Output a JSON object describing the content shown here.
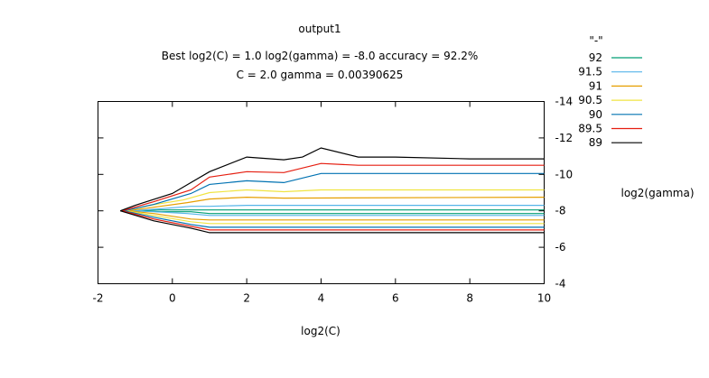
{
  "chart_data": {
    "type": "line",
    "subtype": "contour",
    "title": "output1",
    "subtitle_lines": [
      "Best log2(C) = 1.0  log2(gamma) = -8.0  accuracy = 92.2%",
      "C = 2.0  gamma = 0.00390625"
    ],
    "xlabel": "log2(C)",
    "ylabel": "log2(gamma)",
    "xlim": [
      -2,
      10
    ],
    "ylim": [
      -4,
      -14
    ],
    "y_axis_side": "right",
    "x_ticks": [
      -2,
      0,
      2,
      4,
      6,
      8,
      10
    ],
    "y_ticks": [
      -4,
      -6,
      -8,
      -10,
      -12,
      -14
    ],
    "grid": false,
    "legend_title": "\"-\"",
    "legend_position": "top-right outside",
    "series": [
      {
        "name": "92",
        "color": "#009e73",
        "lines": [
          [
            [
              -1.0,
              -8.0
            ],
            [
              -0.3,
              -8.05
            ],
            [
              0.5,
              -8.05
            ],
            [
              1.0,
              -8.05
            ],
            [
              10.0,
              -8.05
            ]
          ],
          [
            [
              -1.0,
              -8.0
            ],
            [
              -0.3,
              -7.95
            ],
            [
              0.5,
              -7.95
            ],
            [
              1.0,
              -7.85
            ],
            [
              10.0,
              -7.85
            ]
          ]
        ]
      },
      {
        "name": "91.5",
        "color": "#56b4e9",
        "lines": [
          [
            [
              -1.1,
              -8.0
            ],
            [
              -0.5,
              -7.95
            ],
            [
              0.4,
              -7.85
            ],
            [
              1.0,
              -7.75
            ],
            [
              10.0,
              -7.75
            ]
          ],
          [
            [
              -1.1,
              -8.0
            ],
            [
              -0.4,
              -8.1
            ],
            [
              0.5,
              -8.25
            ],
            [
              1.0,
              -8.25
            ],
            [
              2.0,
              -8.3
            ],
            [
              10.0,
              -8.3
            ]
          ]
        ]
      },
      {
        "name": "91",
        "color": "#e69f00",
        "lines": [
          [
            [
              -1.2,
              -8.0
            ],
            [
              -0.5,
              -7.85
            ],
            [
              0.5,
              -7.55
            ],
            [
              1.0,
              -7.5
            ],
            [
              10.0,
              -7.5
            ]
          ],
          [
            [
              -1.2,
              -8.0
            ],
            [
              -0.5,
              -8.2
            ],
            [
              0.4,
              -8.45
            ],
            [
              1.0,
              -8.65
            ],
            [
              2.0,
              -8.75
            ],
            [
              3.0,
              -8.7
            ],
            [
              10.0,
              -8.75
            ]
          ]
        ]
      },
      {
        "name": "90.5",
        "color": "#f0e442",
        "lines": [
          [
            [
              -1.25,
              -8.0
            ],
            [
              -0.5,
              -7.75
            ],
            [
              0.5,
              -7.4
            ],
            [
              1.0,
              -7.3
            ],
            [
              10.0,
              -7.3
            ]
          ],
          [
            [
              -1.25,
              -8.0
            ],
            [
              -0.6,
              -8.3
            ],
            [
              0.3,
              -8.6
            ],
            [
              1.0,
              -9.0
            ],
            [
              2.0,
              -9.15
            ],
            [
              3.0,
              -9.05
            ],
            [
              4.0,
              -9.15
            ],
            [
              10.0,
              -9.15
            ]
          ]
        ]
      },
      {
        "name": "90",
        "color": "#0072b2",
        "lines": [
          [
            [
              -1.3,
              -8.0
            ],
            [
              -0.5,
              -7.65
            ],
            [
              0.5,
              -7.25
            ],
            [
              1.0,
              -7.1
            ],
            [
              10.0,
              -7.1
            ]
          ],
          [
            [
              -1.3,
              -8.0
            ],
            [
              -0.5,
              -8.35
            ],
            [
              0.5,
              -8.95
            ],
            [
              1.0,
              -9.45
            ],
            [
              2.0,
              -9.65
            ],
            [
              3.0,
              -9.55
            ],
            [
              4.0,
              -10.05
            ],
            [
              10.0,
              -10.05
            ]
          ]
        ]
      },
      {
        "name": "89.5",
        "color": "#e51e10",
        "lines": [
          [
            [
              -1.35,
              -8.0
            ],
            [
              -0.5,
              -7.55
            ],
            [
              0.5,
              -7.15
            ],
            [
              1.0,
              -6.95
            ],
            [
              10.0,
              -6.95
            ]
          ],
          [
            [
              -1.35,
              -8.0
            ],
            [
              -0.5,
              -8.5
            ],
            [
              0.5,
              -9.15
            ],
            [
              1.0,
              -9.85
            ],
            [
              2.0,
              -10.15
            ],
            [
              3.0,
              -10.1
            ],
            [
              4.0,
              -10.6
            ],
            [
              5.0,
              -10.5
            ],
            [
              10.0,
              -10.5
            ]
          ]
        ]
      },
      {
        "name": "89",
        "color": "#000000",
        "lines": [
          [
            [
              -1.4,
              -8.0
            ],
            [
              -0.5,
              -7.45
            ],
            [
              0.5,
              -7.05
            ],
            [
              1.0,
              -6.8
            ],
            [
              10.0,
              -6.8
            ]
          ],
          [
            [
              -1.4,
              -8.0
            ],
            [
              -1.0,
              -8.3
            ],
            [
              0.0,
              -8.95
            ],
            [
              0.5,
              -9.55
            ],
            [
              1.0,
              -10.15
            ],
            [
              2.0,
              -10.95
            ],
            [
              3.0,
              -10.8
            ],
            [
              3.5,
              -10.95
            ],
            [
              4.0,
              -11.45
            ],
            [
              5.0,
              -10.95
            ],
            [
              6.0,
              -10.95
            ],
            [
              8.0,
              -10.85
            ],
            [
              10.0,
              -10.85
            ]
          ]
        ]
      }
    ]
  }
}
